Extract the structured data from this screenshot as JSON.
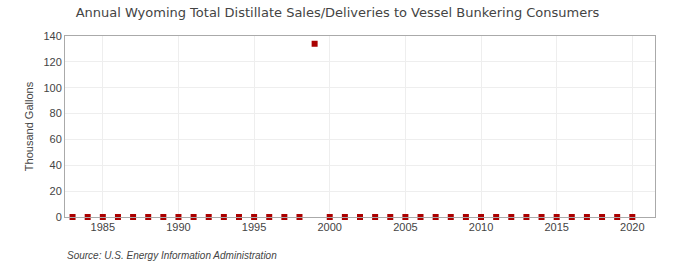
{
  "chart_data": {
    "type": "scatter",
    "title": "Annual Wyoming Total Distillate Sales/Deliveries to Vessel Bunkering Consumers",
    "ylabel": "Thousand Gallons",
    "annotations": [
      "Source: U.S. Energy Information Administration"
    ],
    "x": [
      1983,
      1984,
      1985,
      1986,
      1987,
      1988,
      1989,
      1990,
      1991,
      1992,
      1993,
      1994,
      1995,
      1996,
      1997,
      1998,
      1999,
      2000,
      2001,
      2002,
      2003,
      2004,
      2005,
      2006,
      2007,
      2008,
      2009,
      2010,
      2011,
      2012,
      2013,
      2014,
      2015,
      2016,
      2017,
      2018,
      2019,
      2020
    ],
    "values": [
      0,
      0,
      0,
      0,
      0,
      0,
      0,
      0,
      0,
      0,
      0,
      0,
      0,
      0,
      0,
      0,
      134,
      0,
      0,
      0,
      0,
      0,
      0,
      0,
      0,
      0,
      0,
      0,
      0,
      0,
      0,
      0,
      0,
      0,
      0,
      0,
      0,
      0
    ],
    "color": "#aa0000",
    "marker": "square",
    "xlim": [
      1982.5,
      2021.5
    ],
    "ylim": [
      0,
      140
    ],
    "xticks": [
      1985,
      1990,
      1995,
      2000,
      2005,
      2010,
      2015,
      2020
    ],
    "yticks": [
      0,
      20,
      40,
      60,
      80,
      100,
      120,
      140
    ],
    "grid": true
  }
}
